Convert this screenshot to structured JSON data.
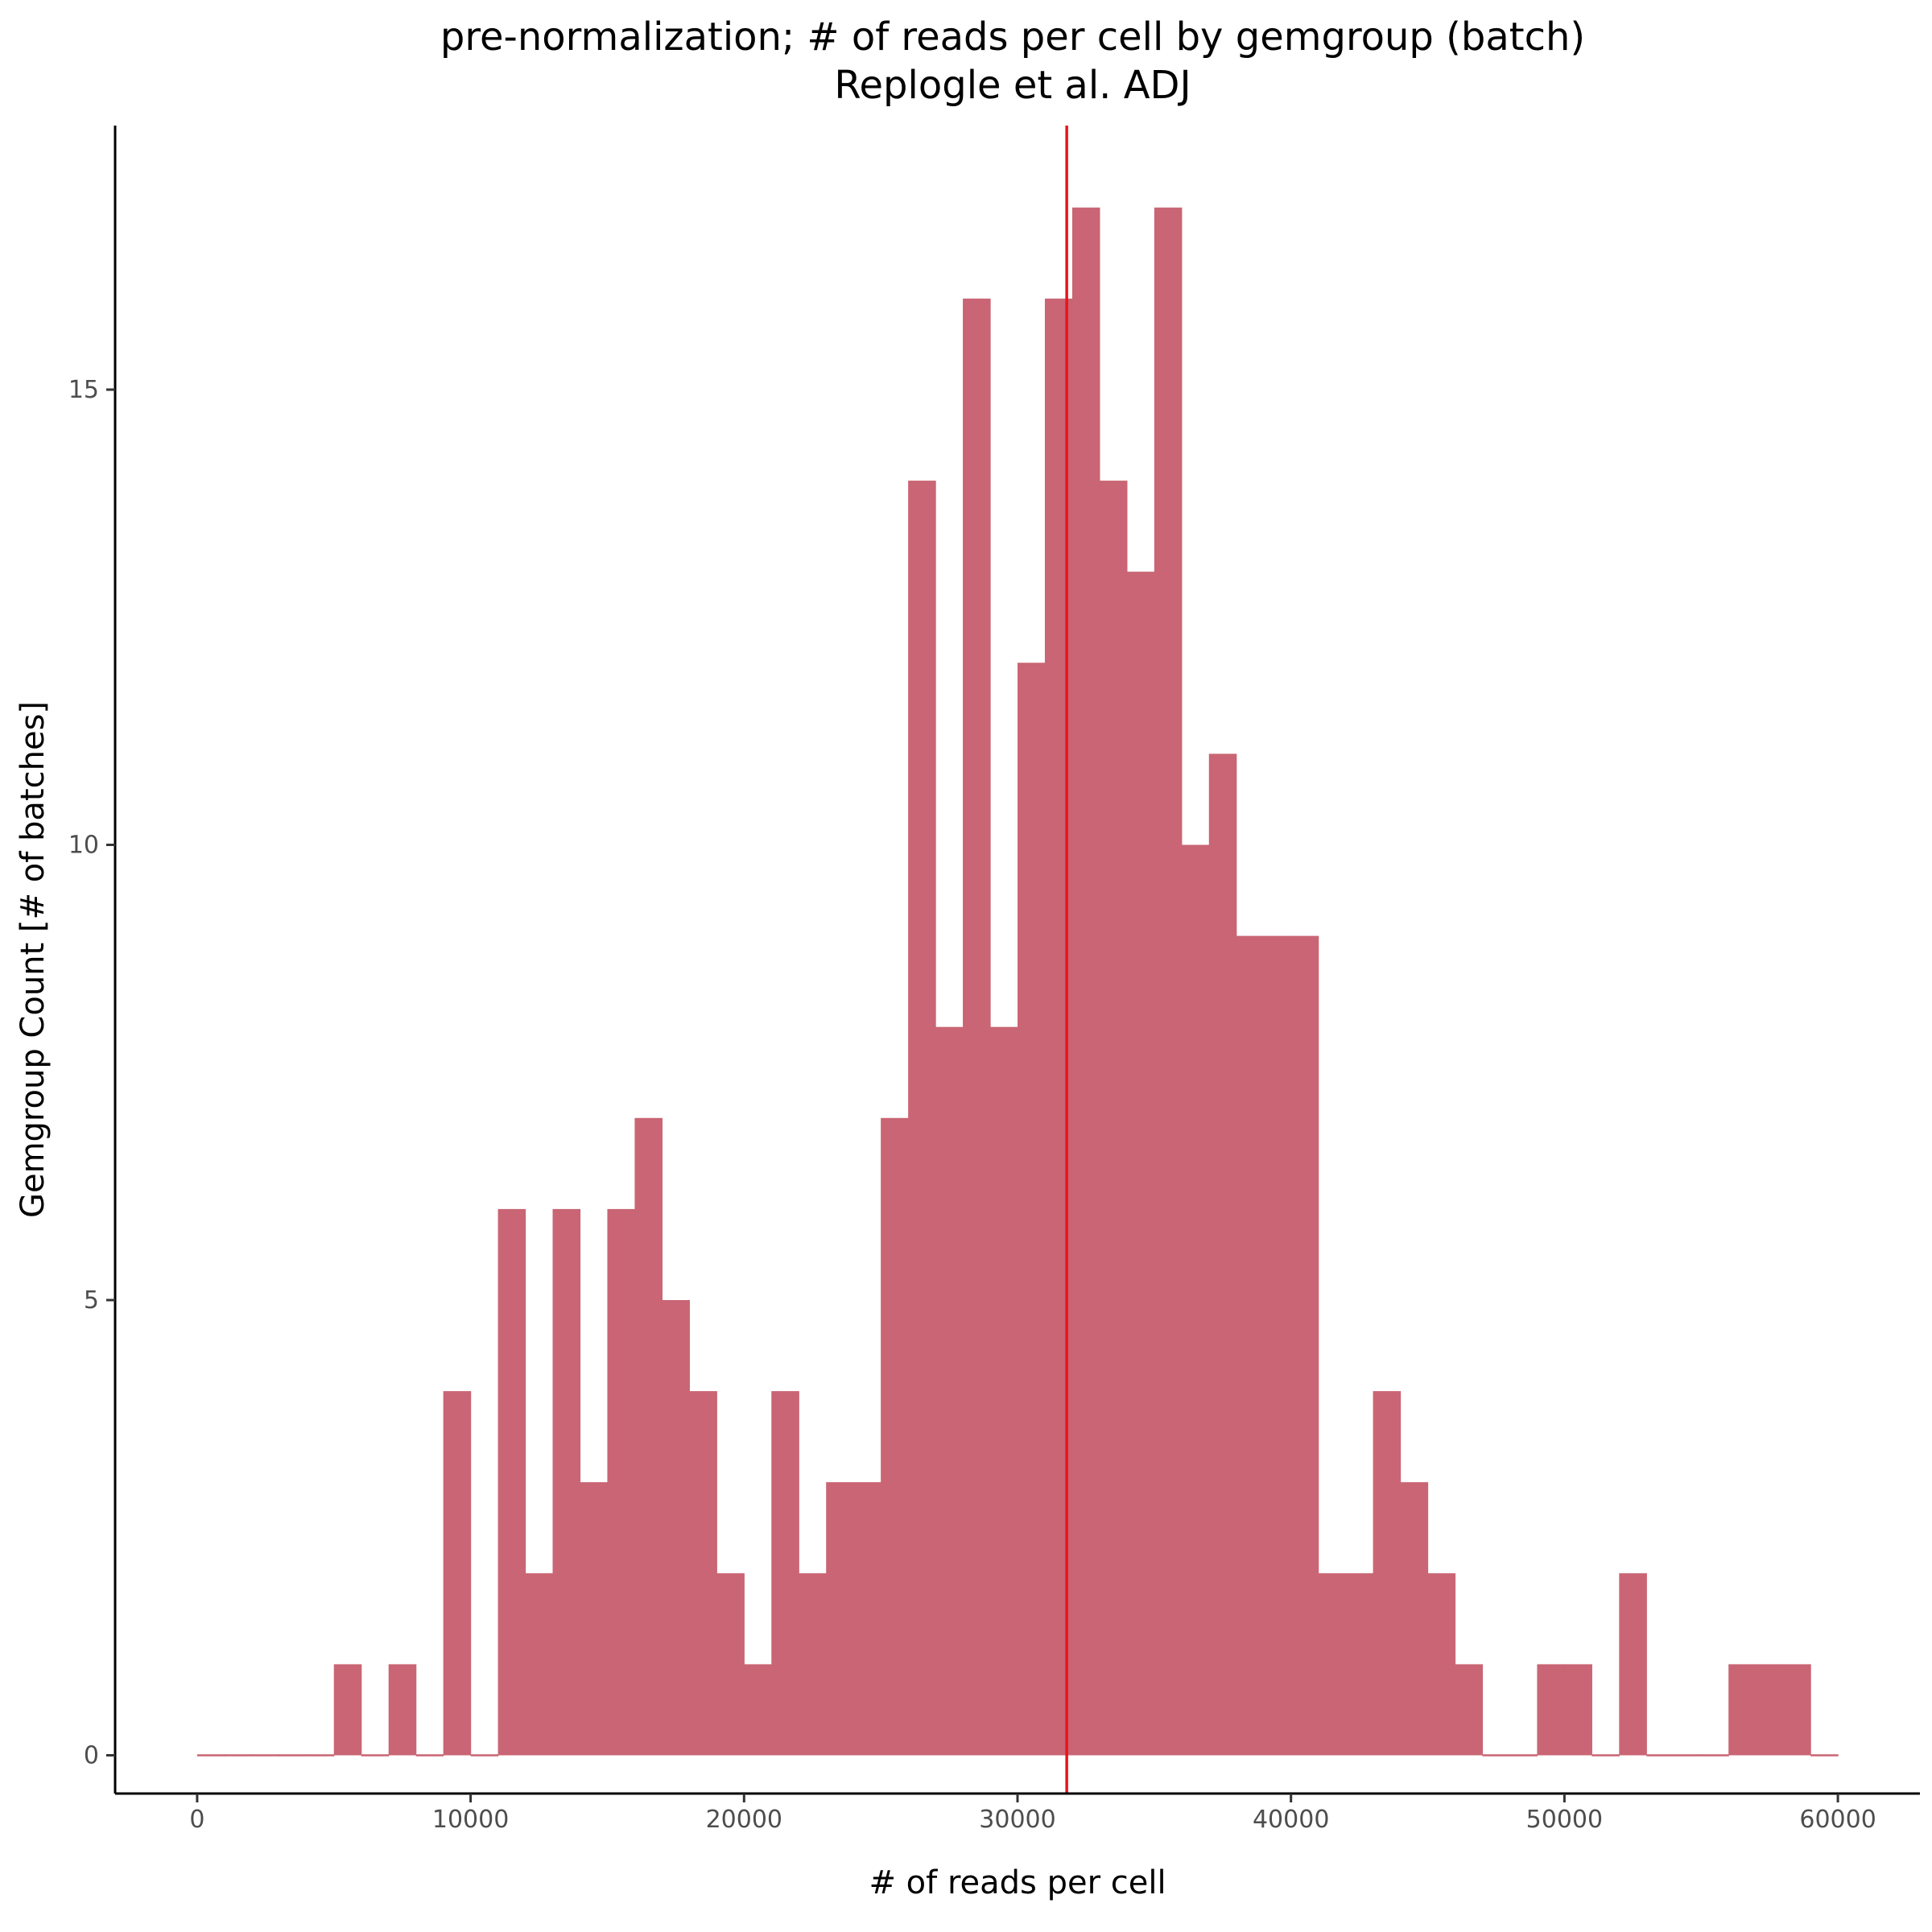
{
  "chart_data": {
    "type": "bar",
    "title": "pre-normalization; # of reads per cell by gemgroup (batch)",
    "subtitle": "Replogle et al. ADJ",
    "xlabel": "# of reads per cell",
    "ylabel": "Gemgroup Count [# of batches]",
    "bin_width": 1000,
    "bin_starts": [
      0,
      1000,
      2000,
      3000,
      4000,
      5000,
      6000,
      7000,
      8000,
      9000,
      10000,
      11000,
      12000,
      13000,
      14000,
      15000,
      16000,
      17000,
      18000,
      19000,
      20000,
      21000,
      22000,
      23000,
      24000,
      25000,
      26000,
      27000,
      28000,
      29000,
      30000,
      31000,
      32000,
      33000,
      34000,
      35000,
      36000,
      37000,
      38000,
      39000,
      40000,
      41000,
      42000,
      43000,
      44000,
      45000,
      46000,
      47000,
      48000,
      49000,
      50000,
      51000,
      52000,
      53000,
      54000,
      55000,
      56000,
      57000,
      58000,
      59000
    ],
    "values": [
      0,
      0,
      0,
      0,
      0,
      1,
      0,
      1,
      0,
      4,
      0,
      6,
      2,
      6,
      3,
      6,
      7,
      5,
      4,
      2,
      1,
      4,
      2,
      3,
      3,
      7,
      14,
      8,
      16,
      8,
      12,
      16,
      17,
      14,
      13,
      17,
      10,
      11,
      9,
      9,
      9,
      2,
      2,
      4,
      3,
      2,
      1,
      0,
      0,
      1,
      1,
      0,
      2,
      0,
      0,
      0,
      1,
      1,
      1,
      0
    ],
    "xlim": [
      -3000,
      63000
    ],
    "ylim": [
      -0.42,
      17.9
    ],
    "xticks": [
      0,
      10000,
      20000,
      30000,
      40000,
      50000,
      60000
    ],
    "xtick_labels": [
      "0",
      "10000",
      "20000",
      "30000",
      "40000",
      "50000",
      "60000"
    ],
    "yticks": [
      0,
      5,
      10,
      15
    ],
    "ytick_labels": [
      "0",
      "5",
      "10",
      "15"
    ],
    "reference_line_x": 31800,
    "bar_color": "#c96574",
    "reference_line_color": "#e8141b",
    "grid": false,
    "legend": "none"
  }
}
